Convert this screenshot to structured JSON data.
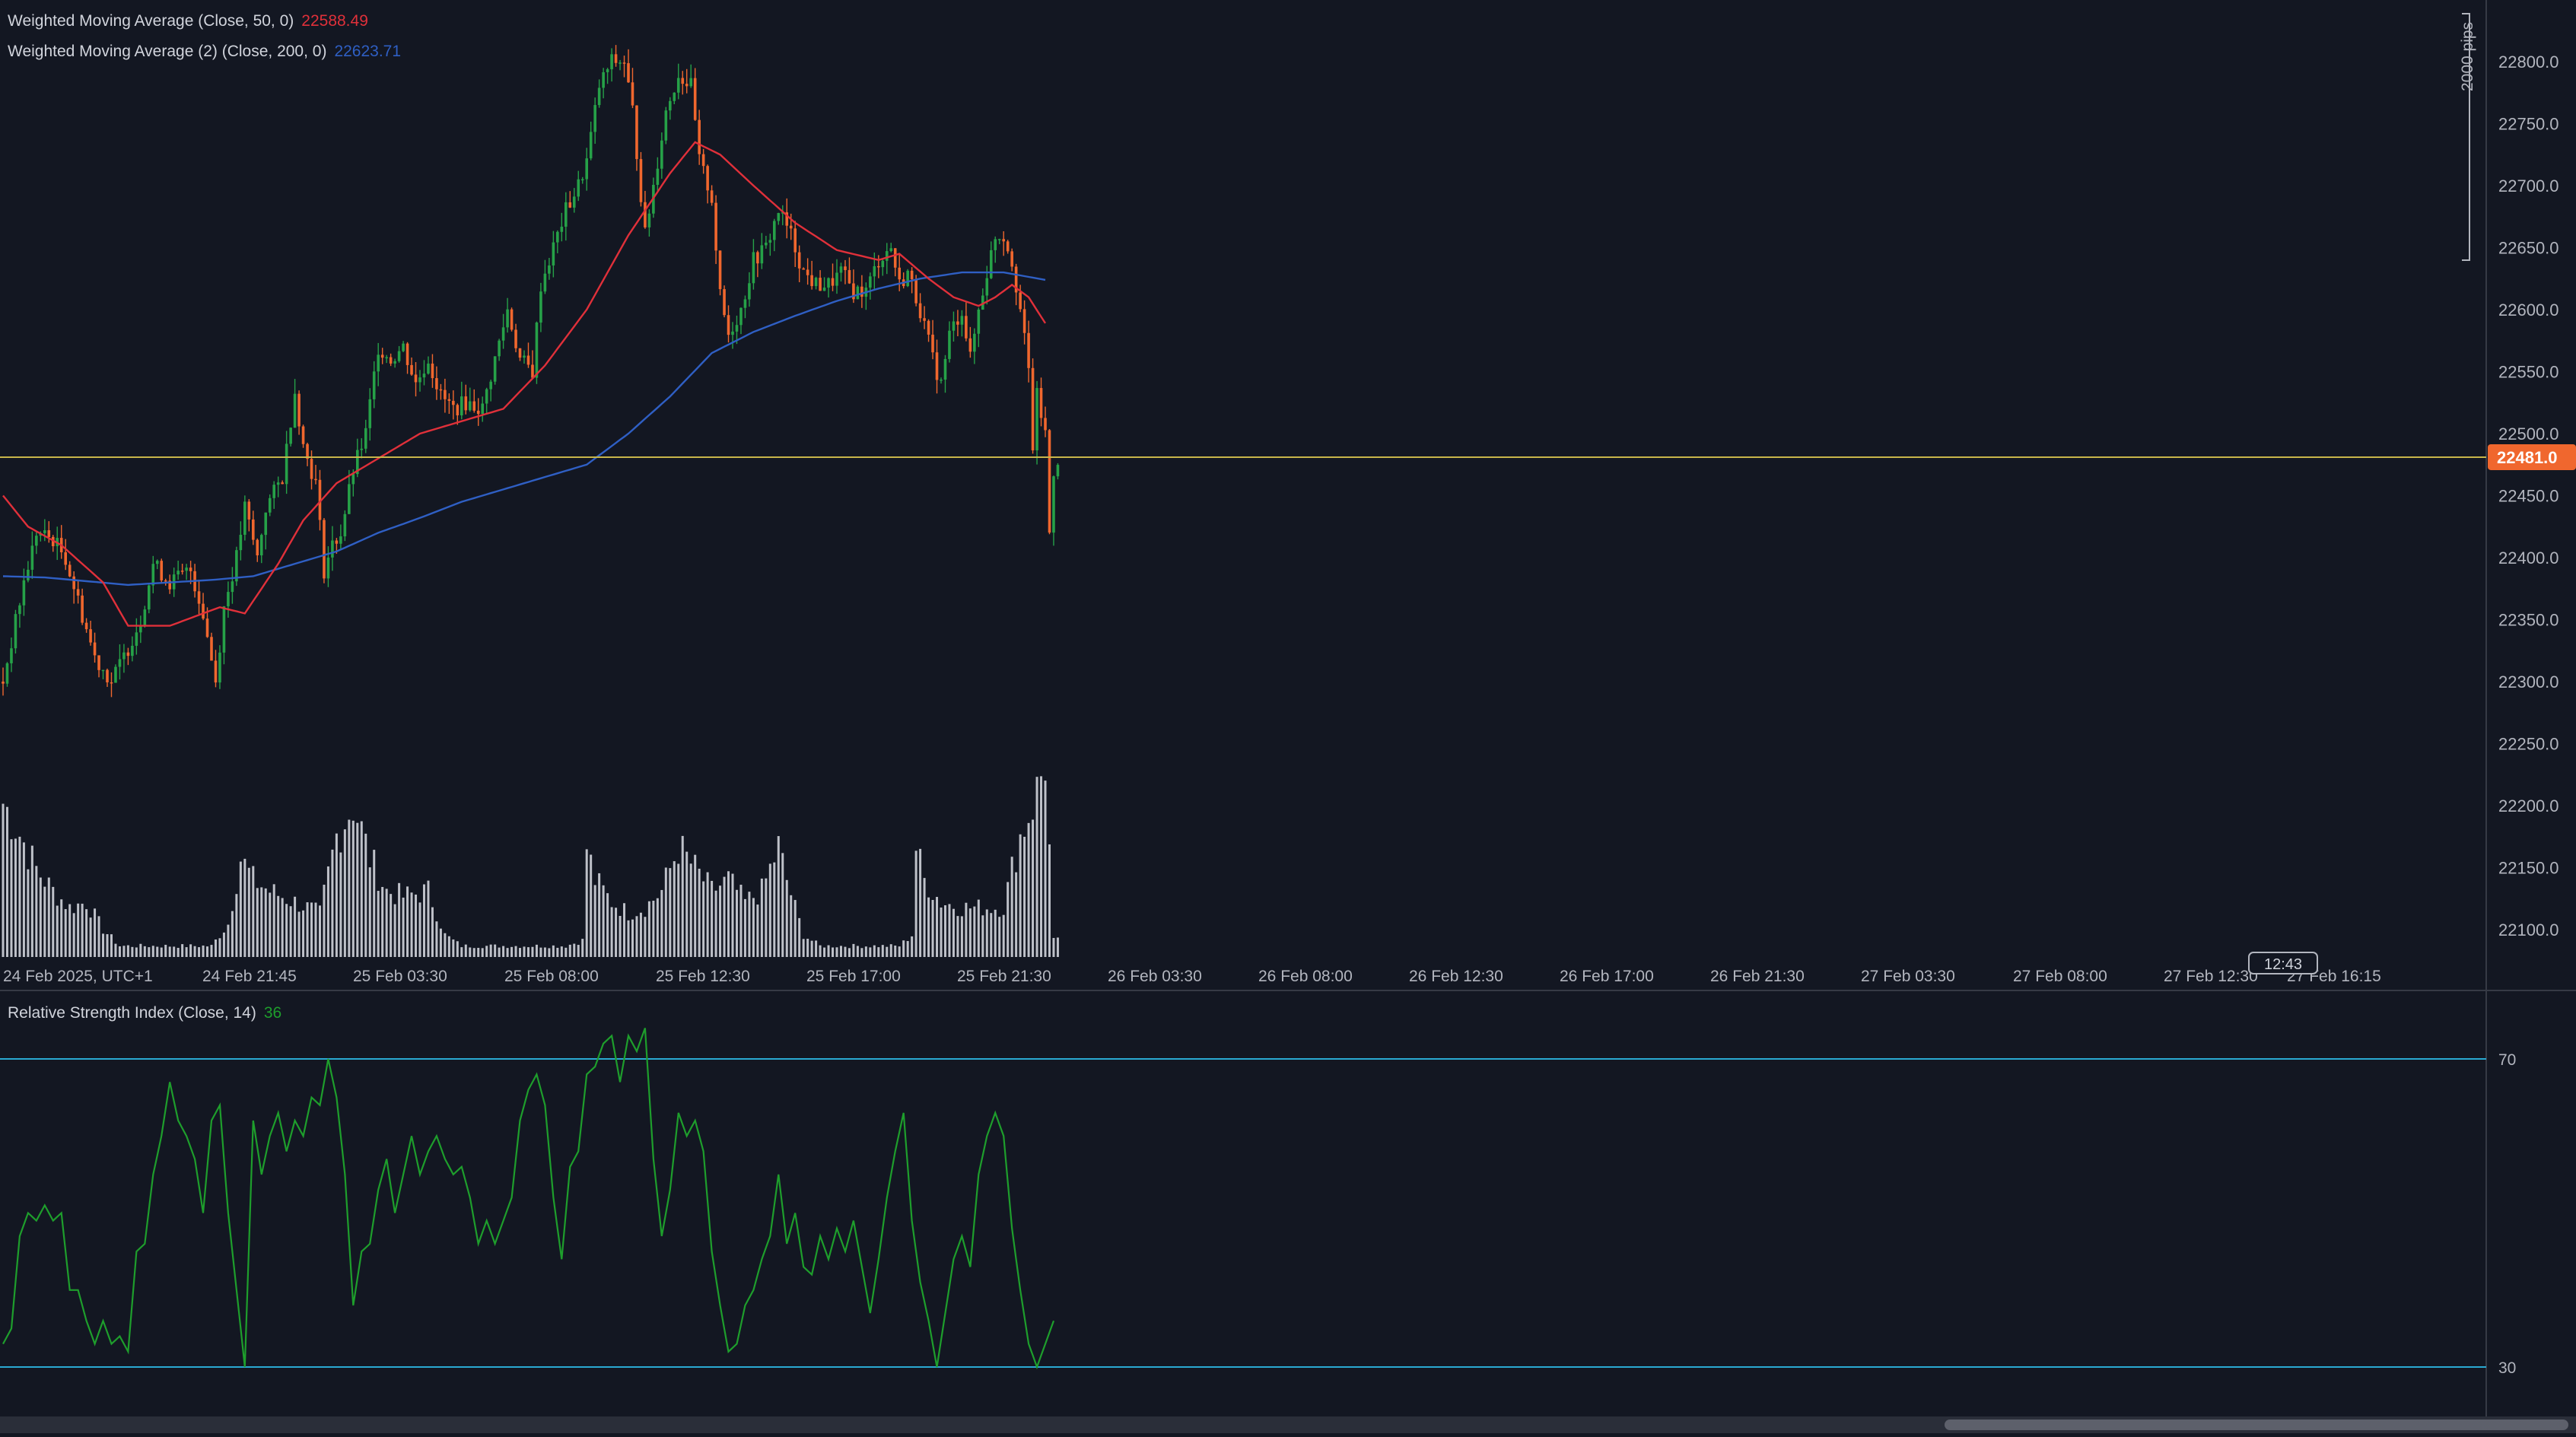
{
  "legend": {
    "wma50_label": "Weighted Moving Average (Close, 50, 0)",
    "wma50_value": "22588.49",
    "wma200_label": "Weighted Moving Average (2) (Close, 200, 0)",
    "wma200_value": "22623.71",
    "rsi_label": "Relative Strength Index (Close, 14)",
    "rsi_value": "36"
  },
  "colors": {
    "background": "#131722",
    "bull": "#26a148",
    "bear": "#f0672e",
    "wma50": "#e0303a",
    "wma200": "#2f5fc4",
    "rsi_line": "#1e9e2c",
    "rsi_levels": "#2aa9d2",
    "price_line": "#c8b64a",
    "price_badge": "#f0672e",
    "volume": "#d1d4dc"
  },
  "price_axis": {
    "ticks": [
      "22800.0",
      "22750.0",
      "22700.0",
      "22650.0",
      "22600.0",
      "22550.0",
      "22500.0",
      "22450.0",
      "22400.0",
      "22350.0",
      "22300.0",
      "22250.0",
      "22200.0",
      "22150.0",
      "22100.0"
    ],
    "tick_values": [
      22800,
      22750,
      22700,
      22650,
      22600,
      22550,
      22500,
      22450,
      22400,
      22350,
      22300,
      22250,
      22200,
      22150,
      22100
    ],
    "current_price_label": "22481.0",
    "current_price": 22481,
    "range_label": "2000 pips"
  },
  "time_axis": {
    "labels": [
      "24 Feb 2025, UTC+1",
      "24 Feb 21:45",
      "25 Feb 03:30",
      "25 Feb 08:00",
      "25 Feb 12:30",
      "25 Feb 17:00",
      "25 Feb 21:30",
      "26 Feb 03:30",
      "26 Feb 08:00",
      "26 Feb 12:30",
      "26 Feb 17:00",
      "26 Feb 21:30",
      "27 Feb 03:30",
      "27 Feb 08:00",
      "27 Feb 12:30",
      "27 Feb 16:15"
    ],
    "countdown": "12:43"
  },
  "rsi_axis": {
    "upper_label": "70",
    "lower_label": "30",
    "upper": 70,
    "lower": 30
  },
  "chart_data": {
    "type": "candlestick",
    "symbol_timeframe": "15m",
    "ylim": [
      22080,
      22830
    ],
    "close_anchors": [
      [
        0,
        22300
      ],
      [
        5,
        22380
      ],
      [
        8,
        22420
      ],
      [
        12,
        22415
      ],
      [
        15,
        22400
      ],
      [
        18,
        22365
      ],
      [
        22,
        22320
      ],
      [
        26,
        22300
      ],
      [
        29,
        22320
      ],
      [
        33,
        22350
      ],
      [
        36,
        22395
      ],
      [
        40,
        22380
      ],
      [
        45,
        22390
      ],
      [
        48,
        22355
      ],
      [
        51,
        22300
      ],
      [
        53,
        22360
      ],
      [
        56,
        22400
      ],
      [
        58,
        22440
      ],
      [
        61,
        22400
      ],
      [
        63,
        22440
      ],
      [
        67,
        22465
      ],
      [
        70,
        22535
      ],
      [
        72,
        22490
      ],
      [
        75,
        22460
      ],
      [
        77,
        22390
      ],
      [
        79,
        22410
      ],
      [
        81,
        22420
      ],
      [
        84,
        22470
      ],
      [
        87,
        22500
      ],
      [
        90,
        22570
      ],
      [
        93,
        22560
      ],
      [
        96,
        22570
      ],
      [
        99,
        22540
      ],
      [
        102,
        22560
      ],
      [
        105,
        22530
      ],
      [
        108,
        22520
      ],
      [
        111,
        22525
      ],
      [
        115,
        22520
      ],
      [
        118,
        22560
      ],
      [
        121,
        22600
      ],
      [
        124,
        22560
      ],
      [
        127,
        22550
      ],
      [
        129,
        22620
      ],
      [
        132,
        22650
      ],
      [
        135,
        22680
      ],
      [
        138,
        22700
      ],
      [
        140,
        22720
      ],
      [
        143,
        22780
      ],
      [
        146,
        22800
      ],
      [
        149,
        22800
      ],
      [
        151,
        22760
      ],
      [
        154,
        22660
      ],
      [
        157,
        22720
      ],
      [
        159,
        22760
      ],
      [
        162,
        22790
      ],
      [
        165,
        22780
      ],
      [
        167,
        22720
      ],
      [
        170,
        22690
      ],
      [
        172,
        22610
      ],
      [
        174,
        22580
      ],
      [
        177,
        22600
      ],
      [
        180,
        22640
      ],
      [
        183,
        22650
      ],
      [
        186,
        22680
      ],
      [
        189,
        22660
      ],
      [
        192,
        22630
      ],
      [
        195,
        22620
      ],
      [
        198,
        22620
      ],
      [
        201,
        22630
      ],
      [
        204,
        22615
      ],
      [
        207,
        22615
      ],
      [
        210,
        22640
      ],
      [
        213,
        22650
      ],
      [
        215,
        22620
      ],
      [
        217,
        22630
      ],
      [
        220,
        22600
      ],
      [
        223,
        22560
      ],
      [
        225,
        22540
      ],
      [
        227,
        22580
      ],
      [
        230,
        22600
      ],
      [
        232,
        22560
      ],
      [
        234,
        22600
      ],
      [
        236,
        22630
      ],
      [
        238,
        22660
      ],
      [
        240,
        22660
      ],
      [
        242,
        22640
      ],
      [
        244,
        22600
      ],
      [
        246,
        22550
      ],
      [
        247,
        22490
      ],
      [
        248,
        22530
      ],
      [
        250,
        22500
      ],
      [
        251,
        22420
      ],
      [
        252,
        22470
      ],
      [
        253,
        22480
      ]
    ],
    "wma50": [
      [
        0,
        22450
      ],
      [
        6,
        22425
      ],
      [
        14,
        22410
      ],
      [
        24,
        22380
      ],
      [
        30,
        22345
      ],
      [
        40,
        22345
      ],
      [
        52,
        22360
      ],
      [
        58,
        22355
      ],
      [
        66,
        22395
      ],
      [
        72,
        22430
      ],
      [
        80,
        22460
      ],
      [
        90,
        22480
      ],
      [
        100,
        22500
      ],
      [
        110,
        22510
      ],
      [
        120,
        22520
      ],
      [
        130,
        22555
      ],
      [
        140,
        22600
      ],
      [
        150,
        22660
      ],
      [
        160,
        22710
      ],
      [
        166,
        22735
      ],
      [
        172,
        22725
      ],
      [
        180,
        22700
      ],
      [
        190,
        22670
      ],
      [
        200,
        22648
      ],
      [
        210,
        22640
      ],
      [
        215,
        22645
      ],
      [
        222,
        22625
      ],
      [
        228,
        22610
      ],
      [
        234,
        22603
      ],
      [
        238,
        22610
      ],
      [
        242,
        22620
      ],
      [
        246,
        22610
      ],
      [
        250,
        22589
      ]
    ],
    "wma200": [
      [
        0,
        22385
      ],
      [
        10,
        22384
      ],
      [
        20,
        22381
      ],
      [
        30,
        22378
      ],
      [
        40,
        22380
      ],
      [
        50,
        22382
      ],
      [
        60,
        22385
      ],
      [
        70,
        22395
      ],
      [
        80,
        22405
      ],
      [
        90,
        22420
      ],
      [
        100,
        22432
      ],
      [
        110,
        22445
      ],
      [
        120,
        22455
      ],
      [
        130,
        22465
      ],
      [
        140,
        22475
      ],
      [
        150,
        22500
      ],
      [
        160,
        22530
      ],
      [
        170,
        22565
      ],
      [
        180,
        22582
      ],
      [
        190,
        22595
      ],
      [
        200,
        22607
      ],
      [
        210,
        22617
      ],
      [
        220,
        22625
      ],
      [
        230,
        22630
      ],
      [
        240,
        22630
      ],
      [
        250,
        22624
      ]
    ],
    "volume_anchors": [
      [
        0,
        14
      ],
      [
        3,
        12
      ],
      [
        8,
        8
      ],
      [
        12,
        6
      ],
      [
        16,
        4.5
      ],
      [
        20,
        5
      ],
      [
        24,
        2.5
      ],
      [
        28,
        1
      ],
      [
        50,
        1
      ],
      [
        54,
        3
      ],
      [
        57,
        9
      ],
      [
        60,
        7
      ],
      [
        64,
        6
      ],
      [
        70,
        5
      ],
      [
        76,
        4
      ],
      [
        80,
        11
      ],
      [
        84,
        14
      ],
      [
        88,
        9
      ],
      [
        92,
        6
      ],
      [
        96,
        5.5
      ],
      [
        102,
        6
      ],
      [
        106,
        2
      ],
      [
        110,
        1
      ],
      [
        135,
        1
      ],
      [
        139,
        1.5
      ],
      [
        140,
        10
      ],
      [
        142,
        7
      ],
      [
        146,
        5
      ],
      [
        150,
        4
      ],
      [
        154,
        4.5
      ],
      [
        158,
        6
      ],
      [
        162,
        10
      ],
      [
        166,
        8
      ],
      [
        170,
        6
      ],
      [
        174,
        7
      ],
      [
        178,
        5
      ],
      [
        182,
        6
      ],
      [
        186,
        10
      ],
      [
        188,
        7
      ],
      [
        192,
        2
      ],
      [
        196,
        1
      ],
      [
        215,
        1
      ],
      [
        218,
        2
      ],
      [
        219,
        10
      ],
      [
        221,
        7
      ],
      [
        225,
        5
      ],
      [
        230,
        4.5
      ],
      [
        235,
        4.5
      ],
      [
        240,
        4.5
      ],
      [
        242,
        8
      ],
      [
        244,
        11
      ],
      [
        246,
        13
      ],
      [
        248,
        15
      ],
      [
        250,
        18
      ],
      [
        252,
        1.5
      ]
    ],
    "volume_max": 18,
    "rsi": [
      [
        0,
        33
      ],
      [
        2,
        35
      ],
      [
        4,
        47
      ],
      [
        6,
        50
      ],
      [
        8,
        49
      ],
      [
        10,
        51
      ],
      [
        12,
        49
      ],
      [
        14,
        50
      ],
      [
        16,
        40
      ],
      [
        18,
        40
      ],
      [
        20,
        36
      ],
      [
        22,
        33
      ],
      [
        24,
        36
      ],
      [
        26,
        33
      ],
      [
        28,
        34
      ],
      [
        30,
        32
      ],
      [
        32,
        45
      ],
      [
        34,
        46
      ],
      [
        36,
        55
      ],
      [
        38,
        60
      ],
      [
        40,
        67
      ],
      [
        42,
        62
      ],
      [
        44,
        60
      ],
      [
        46,
        57
      ],
      [
        48,
        50
      ],
      [
        50,
        62
      ],
      [
        52,
        64
      ],
      [
        54,
        50
      ],
      [
        56,
        40
      ],
      [
        58,
        30
      ],
      [
        60,
        62
      ],
      [
        62,
        55
      ],
      [
        64,
        60
      ],
      [
        66,
        63
      ],
      [
        68,
        58
      ],
      [
        70,
        62
      ],
      [
        72,
        60
      ],
      [
        74,
        65
      ],
      [
        76,
        64
      ],
      [
        78,
        70
      ],
      [
        80,
        65
      ],
      [
        82,
        55
      ],
      [
        84,
        38
      ],
      [
        86,
        45
      ],
      [
        88,
        46
      ],
      [
        90,
        53
      ],
      [
        92,
        57
      ],
      [
        94,
        50
      ],
      [
        96,
        55
      ],
      [
        98,
        60
      ],
      [
        100,
        55
      ],
      [
        102,
        58
      ],
      [
        104,
        60
      ],
      [
        106,
        57
      ],
      [
        108,
        55
      ],
      [
        110,
        56
      ],
      [
        112,
        52
      ],
      [
        114,
        46
      ],
      [
        116,
        49
      ],
      [
        118,
        46
      ],
      [
        120,
        49
      ],
      [
        122,
        52
      ],
      [
        124,
        62
      ],
      [
        126,
        66
      ],
      [
        128,
        68
      ],
      [
        130,
        64
      ],
      [
        132,
        52
      ],
      [
        134,
        44
      ],
      [
        136,
        56
      ],
      [
        138,
        58
      ],
      [
        140,
        68
      ],
      [
        142,
        69
      ],
      [
        144,
        72
      ],
      [
        146,
        73
      ],
      [
        148,
        67
      ],
      [
        150,
        73
      ],
      [
        152,
        71
      ],
      [
        154,
        74
      ],
      [
        156,
        57
      ],
      [
        158,
        47
      ],
      [
        160,
        53
      ],
      [
        162,
        63
      ],
      [
        164,
        60
      ],
      [
        166,
        62
      ],
      [
        168,
        58
      ],
      [
        170,
        45
      ],
      [
        172,
        38
      ],
      [
        174,
        32
      ],
      [
        176,
        33
      ],
      [
        178,
        38
      ],
      [
        180,
        40
      ],
      [
        182,
        44
      ],
      [
        184,
        47
      ],
      [
        186,
        55
      ],
      [
        188,
        46
      ],
      [
        190,
        50
      ],
      [
        192,
        43
      ],
      [
        194,
        42
      ],
      [
        196,
        47
      ],
      [
        198,
        44
      ],
      [
        200,
        48
      ],
      [
        202,
        45
      ],
      [
        204,
        49
      ],
      [
        206,
        43
      ],
      [
        208,
        37
      ],
      [
        210,
        44
      ],
      [
        212,
        52
      ],
      [
        214,
        58
      ],
      [
        216,
        63
      ],
      [
        218,
        49
      ],
      [
        220,
        41
      ],
      [
        222,
        36
      ],
      [
        224,
        30
      ],
      [
        226,
        37
      ],
      [
        228,
        44
      ],
      [
        230,
        47
      ],
      [
        232,
        43
      ],
      [
        234,
        55
      ],
      [
        236,
        60
      ],
      [
        238,
        63
      ],
      [
        240,
        60
      ],
      [
        242,
        48
      ],
      [
        244,
        40
      ],
      [
        246,
        33
      ],
      [
        248,
        30
      ],
      [
        250,
        33
      ],
      [
        252,
        36
      ]
    ]
  }
}
